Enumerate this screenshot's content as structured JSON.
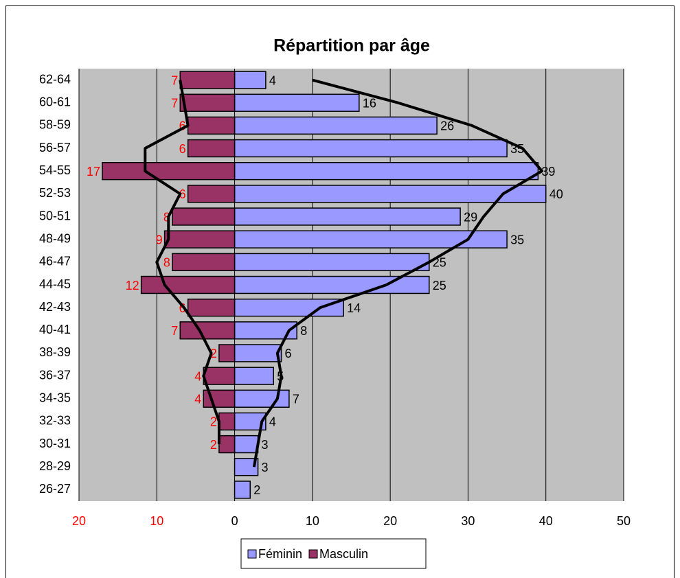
{
  "chart_data": {
    "type": "pyramid",
    "title": "Répartition par âge",
    "categories": [
      "62-64",
      "60-61",
      "58-59",
      "56-57",
      "54-55",
      "52-53",
      "50-51",
      "48-49",
      "46-47",
      "44-45",
      "42-43",
      "40-41",
      "38-39",
      "36-37",
      "34-35",
      "32-33",
      "30-31",
      "28-29",
      "26-27"
    ],
    "series": [
      {
        "name": "Féminin",
        "color": "#9999ff",
        "label_color": "#000000",
        "values": [
          4,
          16,
          26,
          35,
          39,
          40,
          29,
          35,
          25,
          25,
          14,
          8,
          6,
          5,
          7,
          4,
          3,
          3,
          2
        ],
        "trend": [
          10,
          21,
          30.5,
          37,
          39.5,
          34.5,
          32,
          30,
          25,
          19.5,
          11,
          7,
          5.5,
          6,
          5.5,
          3.5,
          3,
          2.5,
          null
        ]
      },
      {
        "name": "Masculin",
        "color": "#993366",
        "label_color": "#ff0000",
        "values": [
          -7,
          -7,
          -6,
          -6,
          -17,
          -6,
          -8,
          -9,
          -8,
          -12,
          -6,
          -7,
          -2,
          -4,
          -4,
          -2,
          -2,
          null,
          null
        ],
        "value_labels": [
          "7",
          "7",
          "6",
          "6",
          "17",
          "6",
          "8",
          "9",
          "8",
          "12",
          "6",
          "7",
          "2",
          "4",
          "4",
          "2",
          "2",
          null,
          null
        ],
        "trend": [
          -7,
          -6.5,
          -6,
          -11.5,
          -11.5,
          -7,
          -8.5,
          -8.5,
          -10,
          -9,
          -6.5,
          -4.5,
          -3,
          -4,
          -3,
          -2,
          -2,
          null,
          null
        ]
      }
    ],
    "xlim": [
      -20,
      50
    ],
    "xticks": [
      {
        "value": -20,
        "label": "20"
      },
      {
        "value": -10,
        "label": "10"
      },
      0,
      10,
      20,
      30,
      40,
      50
    ],
    "negative_tick_color": "#ff0000",
    "grid": true,
    "legend": "bottom"
  }
}
